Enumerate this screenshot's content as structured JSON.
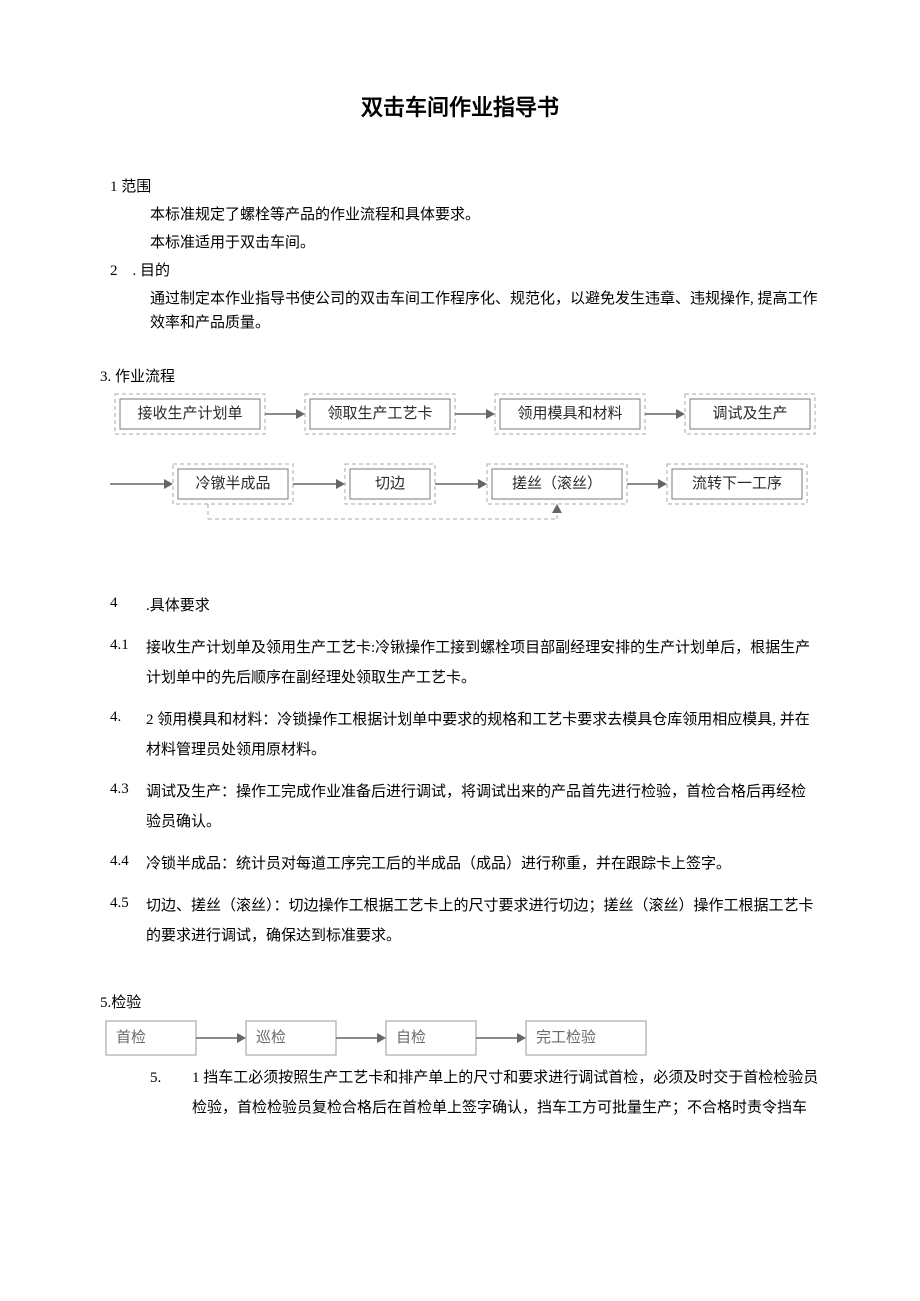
{
  "title": "双击车间作业指导书",
  "s1": {
    "head": "1 范围",
    "p1": "本标准规定了螺栓等产品的作业流程和具体要求。",
    "p2": "本标准适用于双击车间。"
  },
  "s2": {
    "head": "2　. 目的",
    "p1": "通过制定本作业指导书使公司的双击车间工作程序化、规范化，以避免发生违章、违规操作, 提高工作效率和产品质量。"
  },
  "s3": {
    "head": "3. 作业流程",
    "flow": {
      "row1": [
        "接收生产计划单",
        "领取生产工艺卡",
        "领用模具和材料",
        "调试及生产"
      ],
      "row2": [
        "冷镦半成品",
        "切边",
        "搓丝（滚丝）",
        "流转下一工序"
      ],
      "box_stroke": "#7a7a7a",
      "box_fill": "#ffffff",
      "dash_stroke": "#a8a8a8",
      "arrow_stroke": "#666666",
      "text_color": "#2b2b2b",
      "font_size": 15
    }
  },
  "s4": {
    "head_num": "4",
    "head_txt": ".具体要求",
    "items": [
      {
        "num": "4.1",
        "txt": "接收生产计划单及领用生产工艺卡:冷锹操作工接到螺栓项目部副经理安排的生产计划单后，根据生产计划单中的先后顺序在副经理处领取生产工艺卡。"
      },
      {
        "num": "4.",
        "txt": "2 领用模具和材料：冷锁操作工根据计划单中要求的规格和工艺卡要求去模具仓库领用相应模具, 并在材料管理员处领用原材料。"
      },
      {
        "num": "4.3",
        "txt": "调试及生产：操作工完成作业准备后进行调试，将调试出来的产品首先进行检验，首检合格后再经检验员确认。"
      },
      {
        "num": "4.4",
        "txt": "冷锁半成品：统计员对每道工序完工后的半成品（成品）进行称重，并在跟踪卡上签字。"
      },
      {
        "num": "4.5",
        "txt": "切边、搓丝（滚丝）：切边操作工根据工艺卡上的尺寸要求进行切边；搓丝（滚丝）操作工根据工艺卡的要求进行调试，确保达到标准要求。"
      }
    ]
  },
  "s5": {
    "head": "5.检验",
    "flow": {
      "boxes": [
        "首检",
        "巡检",
        "自检",
        "完工检验"
      ],
      "box_stroke": "#9a9a9a",
      "text_color": "#6a6a6a",
      "arrow_stroke": "#666666",
      "font_size": 15
    },
    "items": [
      {
        "num": "5.",
        "txt": "1 挡车工必须按照生产工艺卡和排产单上的尺寸和要求进行调试首检，必须及时交于首检检验员检验，首检检验员复检合格后在首检单上签字确认，挡车工方可批量生产；不合格时责令挡车"
      }
    ]
  }
}
